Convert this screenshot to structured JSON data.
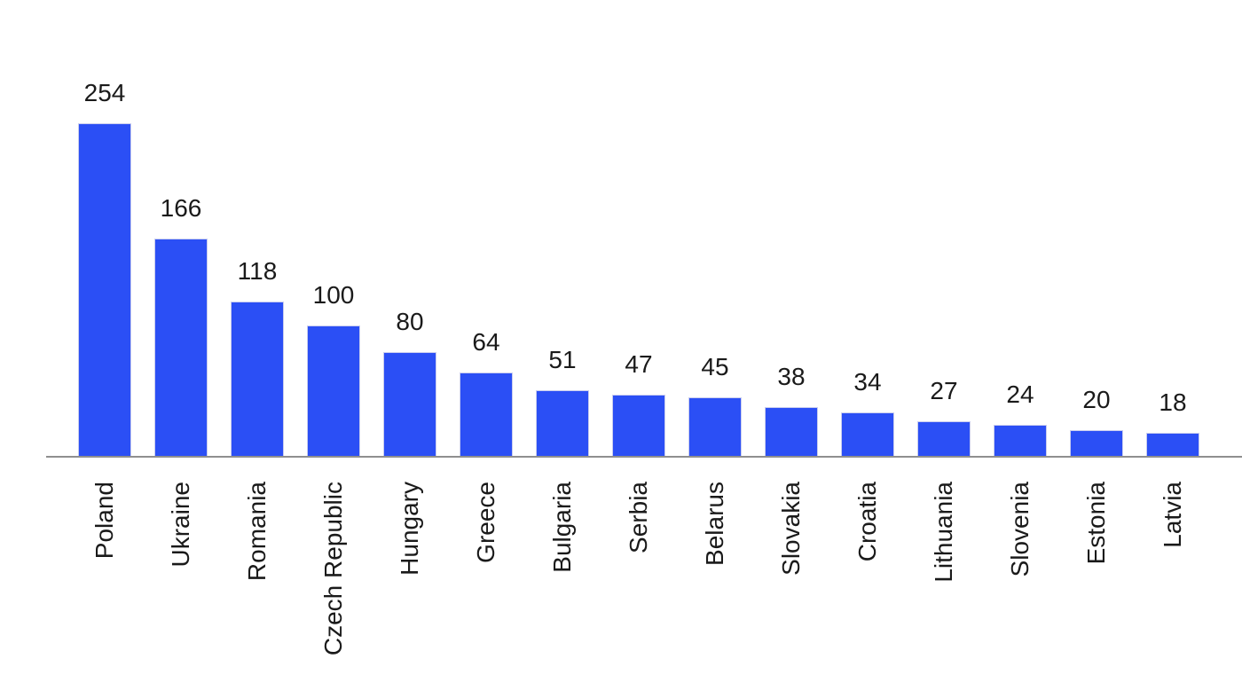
{
  "chart_data": {
    "type": "bar",
    "title": "",
    "xlabel": "",
    "ylabel": "",
    "categories": [
      "Poland",
      "Ukraine",
      "Romania",
      "Czech Republic",
      "Hungary",
      "Greece",
      "Bulgaria",
      "Serbia",
      "Belarus",
      "Slovakia",
      "Croatia",
      "Lithuania",
      "Slovenia",
      "Estonia",
      "Latvia"
    ],
    "values": [
      254,
      166,
      118,
      100,
      80,
      64,
      51,
      47,
      45,
      38,
      34,
      27,
      24,
      20,
      18
    ],
    "ylim": [
      0,
      280
    ],
    "grid": false,
    "legend": false,
    "value_labels_shown": true,
    "x_tick_rotation": 90,
    "bar_color": "#2b4ff5",
    "bar_edge_color": "#c9cdee",
    "axis_line_color": "#8f8f8f",
    "label_color": "#1a1a1a",
    "background_color": "#ffffff"
  }
}
